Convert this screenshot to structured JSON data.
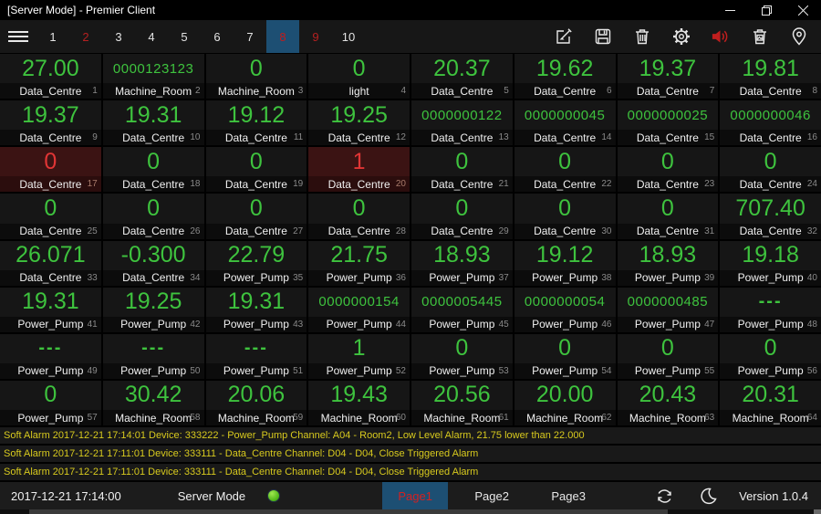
{
  "window": {
    "title": "[Server Mode] - Premier Client",
    "controls": {
      "minimize": "minimize",
      "restore": "restore",
      "close": "close"
    }
  },
  "toolbar": {
    "tabs": [
      {
        "label": "1",
        "style": "normal"
      },
      {
        "label": "2",
        "style": "red"
      },
      {
        "label": "3",
        "style": "normal"
      },
      {
        "label": "4",
        "style": "normal"
      },
      {
        "label": "5",
        "style": "normal"
      },
      {
        "label": "6",
        "style": "normal"
      },
      {
        "label": "7",
        "style": "normal"
      },
      {
        "label": "8",
        "style": "selected"
      },
      {
        "label": "9",
        "style": "red"
      },
      {
        "label": "10",
        "style": "normal"
      }
    ],
    "icons": [
      "edit-icon",
      "save-icon",
      "delete-icon",
      "settings-icon",
      "mute-icon",
      "image-bin-icon",
      "location-icon"
    ]
  },
  "grid": {
    "columns": 8,
    "cells": [
      {
        "value": "27.00",
        "label": "Data_Centre",
        "index": "1",
        "state": "normal"
      },
      {
        "value": "0000123123",
        "label": "Machine_Room",
        "index": "2",
        "state": "normal"
      },
      {
        "value": "0",
        "label": "Machine_Room",
        "index": "3",
        "state": "normal"
      },
      {
        "value": "0",
        "label": "light",
        "index": "4",
        "state": "normal"
      },
      {
        "value": "20.37",
        "label": "Data_Centre",
        "index": "5",
        "state": "normal"
      },
      {
        "value": "19.62",
        "label": "Data_Centre",
        "index": "6",
        "state": "normal"
      },
      {
        "value": "19.37",
        "label": "Data_Centre",
        "index": "7",
        "state": "normal"
      },
      {
        "value": "19.81",
        "label": "Data_Centre",
        "index": "8",
        "state": "normal"
      },
      {
        "value": "19.37",
        "label": "Data_Centre",
        "index": "9",
        "state": "normal"
      },
      {
        "value": "19.31",
        "label": "Data_Centre",
        "index": "10",
        "state": "normal"
      },
      {
        "value": "19.12",
        "label": "Data_Centre",
        "index": "11",
        "state": "normal"
      },
      {
        "value": "19.25",
        "label": "Data_Centre",
        "index": "12",
        "state": "normal"
      },
      {
        "value": "0000000122",
        "label": "Data_Centre",
        "index": "13",
        "state": "normal"
      },
      {
        "value": "0000000045",
        "label": "Data_Centre",
        "index": "14",
        "state": "normal"
      },
      {
        "value": "0000000025",
        "label": "Data_Centre",
        "index": "15",
        "state": "normal"
      },
      {
        "value": "0000000046",
        "label": "Data_Centre",
        "index": "16",
        "state": "normal"
      },
      {
        "value": "0",
        "label": "Data_Centre",
        "index": "17",
        "state": "alarm"
      },
      {
        "value": "0",
        "label": "Data_Centre",
        "index": "18",
        "state": "normal"
      },
      {
        "value": "0",
        "label": "Data_Centre",
        "index": "19",
        "state": "normal"
      },
      {
        "value": "1",
        "label": "Data_Centre",
        "index": "20",
        "state": "alarm"
      },
      {
        "value": "0",
        "label": "Data_Centre",
        "index": "21",
        "state": "normal"
      },
      {
        "value": "0",
        "label": "Data_Centre",
        "index": "22",
        "state": "normal"
      },
      {
        "value": "0",
        "label": "Data_Centre",
        "index": "23",
        "state": "normal"
      },
      {
        "value": "0",
        "label": "Data_Centre",
        "index": "24",
        "state": "normal"
      },
      {
        "value": "0",
        "label": "Data_Centre",
        "index": "25",
        "state": "normal"
      },
      {
        "value": "0",
        "label": "Data_Centre",
        "index": "26",
        "state": "normal"
      },
      {
        "value": "0",
        "label": "Data_Centre",
        "index": "27",
        "state": "normal"
      },
      {
        "value": "0",
        "label": "Data_Centre",
        "index": "28",
        "state": "normal"
      },
      {
        "value": "0",
        "label": "Data_Centre",
        "index": "29",
        "state": "normal"
      },
      {
        "value": "0",
        "label": "Data_Centre",
        "index": "30",
        "state": "normal"
      },
      {
        "value": "0",
        "label": "Data_Centre",
        "index": "31",
        "state": "normal"
      },
      {
        "value": "707.40",
        "label": "Data_Centre",
        "index": "32",
        "state": "normal"
      },
      {
        "value": "26.071",
        "label": "Data_Centre",
        "index": "33",
        "state": "normal"
      },
      {
        "value": "-0.300",
        "label": "Data_Centre",
        "index": "34",
        "state": "normal"
      },
      {
        "value": "22.79",
        "label": "Power_Pump",
        "index": "35",
        "state": "normal"
      },
      {
        "value": "21.75",
        "label": "Power_Pump",
        "index": "36",
        "state": "normal"
      },
      {
        "value": "18.93",
        "label": "Power_Pump",
        "index": "37",
        "state": "normal"
      },
      {
        "value": "19.12",
        "label": "Power_Pump",
        "index": "38",
        "state": "normal"
      },
      {
        "value": "18.93",
        "label": "Power_Pump",
        "index": "39",
        "state": "normal"
      },
      {
        "value": "19.18",
        "label": "Power_Pump",
        "index": "40",
        "state": "normal"
      },
      {
        "value": "19.31",
        "label": "Power_Pump",
        "index": "41",
        "state": "normal"
      },
      {
        "value": "19.25",
        "label": "Power_Pump",
        "index": "42",
        "state": "normal"
      },
      {
        "value": "19.31",
        "label": "Power_Pump",
        "index": "43",
        "state": "normal"
      },
      {
        "value": "0000000154",
        "label": "Power_Pump",
        "index": "44",
        "state": "normal"
      },
      {
        "value": "0000005445",
        "label": "Power_Pump",
        "index": "45",
        "state": "normal"
      },
      {
        "value": "0000000054",
        "label": "Power_Pump",
        "index": "46",
        "state": "normal"
      },
      {
        "value": "0000000485",
        "label": "Power_Pump",
        "index": "47",
        "state": "normal"
      },
      {
        "value": "---",
        "label": "Power_Pump",
        "index": "48",
        "state": "normal"
      },
      {
        "value": "---",
        "label": "Power_Pump",
        "index": "49",
        "state": "normal"
      },
      {
        "value": "---",
        "label": "Power_Pump",
        "index": "50",
        "state": "normal"
      },
      {
        "value": "---",
        "label": "Power_Pump",
        "index": "51",
        "state": "normal"
      },
      {
        "value": "1",
        "label": "Power_Pump",
        "index": "52",
        "state": "normal"
      },
      {
        "value": "0",
        "label": "Power_Pump",
        "index": "53",
        "state": "normal"
      },
      {
        "value": "0",
        "label": "Power_Pump",
        "index": "54",
        "state": "normal"
      },
      {
        "value": "0",
        "label": "Power_Pump",
        "index": "55",
        "state": "normal"
      },
      {
        "value": "0",
        "label": "Power_Pump",
        "index": "56",
        "state": "normal"
      },
      {
        "value": "0",
        "label": "Power_Pump",
        "index": "57",
        "state": "normal"
      },
      {
        "value": "30.42",
        "label": "Machine_Room",
        "index": "58",
        "state": "normal"
      },
      {
        "value": "20.06",
        "label": "Machine_Room",
        "index": "59",
        "state": "normal"
      },
      {
        "value": "19.43",
        "label": "Machine_Room",
        "index": "60",
        "state": "normal"
      },
      {
        "value": "20.56",
        "label": "Machine_Room",
        "index": "61",
        "state": "normal"
      },
      {
        "value": "20.00",
        "label": "Machine_Room",
        "index": "62",
        "state": "normal"
      },
      {
        "value": "20.43",
        "label": "Machine_Room",
        "index": "63",
        "state": "normal"
      },
      {
        "value": "20.31",
        "label": "Machine_Room",
        "index": "64",
        "state": "normal"
      }
    ]
  },
  "alarms": [
    {
      "text": "Soft Alarm 2017-12-21 17:14:01 Device: 333222 - Power_Pump Channel: A04 - Room2, Low Level Alarm, 21.75 lower than 22.000"
    },
    {
      "text": "Soft Alarm 2017-12-21 17:11:01 Device: 333111 - Data_Centre Channel: D04 - D04, Close Triggered Alarm"
    },
    {
      "text": "Soft Alarm 2017-12-21 17:11:01 Device: 333111 - Data_Centre Channel: D04 - D04, Close Triggered Alarm"
    }
  ],
  "statusbar": {
    "datetime": "2017-12-21 17:14:00",
    "mode_label": "Server Mode",
    "pages": [
      {
        "label": "Page1",
        "selected": true
      },
      {
        "label": "Page2",
        "selected": false
      },
      {
        "label": "Page3",
        "selected": false
      }
    ],
    "icons": [
      "sync-icon",
      "moon-icon"
    ],
    "version": "Version 1.0.4"
  },
  "colors": {
    "value_green": "#3ec33e",
    "alarm_red": "#e03535",
    "alarm_cell_bg": "#3b1313",
    "accent_blue": "#1d4f73",
    "tab_red": "#b52020",
    "alarm_text_yellow": "#d8ca1e",
    "led_green": "#5cd41c"
  }
}
